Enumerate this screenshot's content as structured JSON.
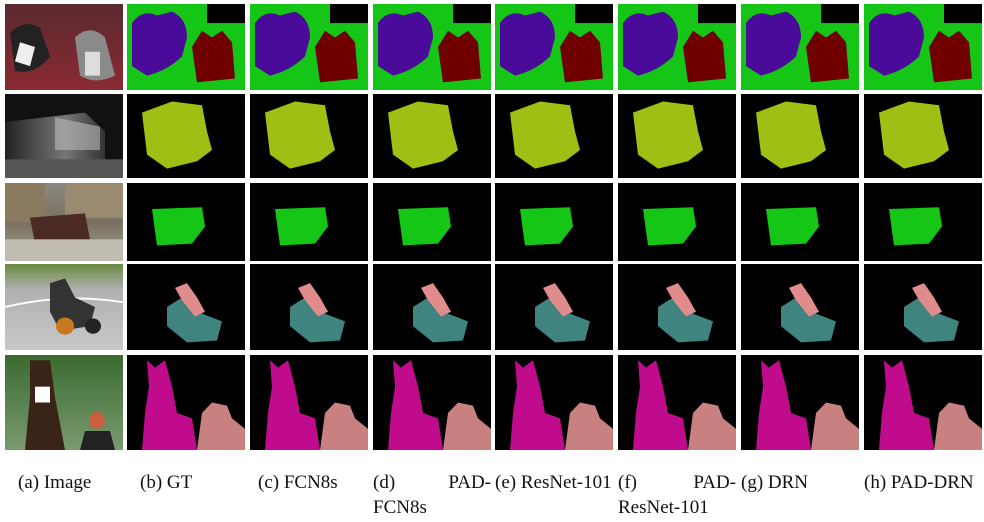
{
  "captions": [
    "(a) Image",
    "(b) GT",
    "(c) FCN8s",
    "(d) PAD-FCN8s",
    "(e) ResNet-101",
    "(f) PAD-ResNet-101",
    "(g) DRN",
    "(h) PAD-DRN"
  ]
}
